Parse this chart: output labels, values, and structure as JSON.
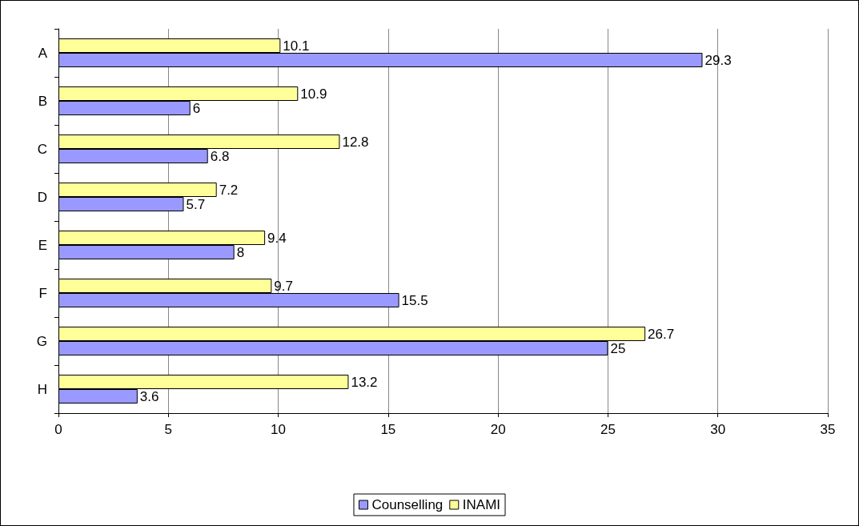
{
  "chart_data": {
    "type": "bar",
    "orientation": "horizontal",
    "categories": [
      "A",
      "B",
      "C",
      "D",
      "E",
      "F",
      "G",
      "H"
    ],
    "series": [
      {
        "name": "Counselling",
        "color": "#9999ff",
        "values": [
          29.3,
          6,
          6.8,
          5.7,
          8,
          15.5,
          25,
          3.6
        ]
      },
      {
        "name": "INAMI",
        "color": "#ffff99",
        "values": [
          10.1,
          10.9,
          12.8,
          7.2,
          9.4,
          9.7,
          26.7,
          13.2
        ]
      }
    ],
    "xlim": [
      0,
      35
    ],
    "xticks": [
      0,
      5,
      10,
      15,
      20,
      25,
      30,
      35
    ],
    "grid": "x",
    "legend": "bottom",
    "data_labels": true
  }
}
